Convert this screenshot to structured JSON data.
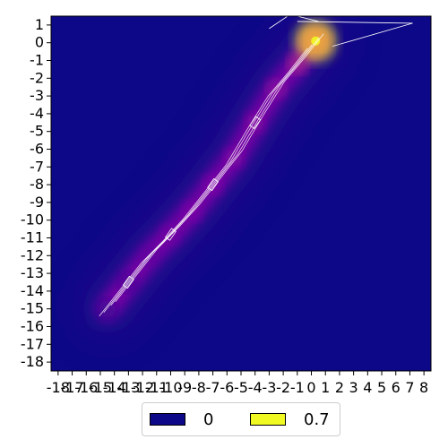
{
  "chart_data": {
    "type": "heatmap",
    "title": "",
    "xlabel": "",
    "ylabel": "",
    "x_ticks": [
      "-18",
      "-17",
      "-16",
      "-15",
      "-14",
      "-13",
      "-12",
      "-11",
      "-10",
      "-9",
      "-8",
      "-7",
      "-6",
      "-5",
      "-4",
      "-3",
      "-2",
      "-1",
      "0",
      "1",
      "2",
      "3",
      "4",
      "5",
      "6",
      "7",
      "8"
    ],
    "y_ticks": [
      "1",
      "0",
      "-1",
      "-2",
      "-3",
      "-4",
      "-5",
      "-6",
      "-7",
      "-8",
      "-9",
      "-10",
      "-11",
      "-12",
      "-13",
      "-14",
      "-15",
      "-16",
      "-17",
      "-18"
    ],
    "xlim": [
      -18.5,
      8.5
    ],
    "ylim": [
      -18.5,
      1.5
    ],
    "colormap": [
      "#0d0887",
      "#7e03a8",
      "#cc4778",
      "#f89540",
      "#f0f921"
    ],
    "value_range": [
      0,
      0.7
    ],
    "contour_color": "#ffffff",
    "ridge": [
      {
        "x": 0.3,
        "y": 0.1,
        "value": 0.7
      },
      {
        "x": -1,
        "y": -1.2,
        "value": 0.3
      },
      {
        "x": -2.5,
        "y": -2.6,
        "value": 0.22
      },
      {
        "x": -4,
        "y": -4.5,
        "value": 0.2
      },
      {
        "x": -5.5,
        "y": -6.5,
        "value": 0.19
      },
      {
        "x": -7,
        "y": -8,
        "value": 0.18
      },
      {
        "x": -8.5,
        "y": -9.5,
        "value": 0.17
      },
      {
        "x": -10,
        "y": -10.8,
        "value": 0.15
      },
      {
        "x": -11.5,
        "y": -12,
        "value": 0.12
      },
      {
        "x": -13,
        "y": -13.5,
        "value": 0.08
      },
      {
        "x": -14.5,
        "y": -15,
        "value": 0.05
      }
    ],
    "legend": [
      {
        "label": "0",
        "color": "#0d0887"
      },
      {
        "label": "0.7",
        "color": "#f0f921"
      }
    ]
  }
}
